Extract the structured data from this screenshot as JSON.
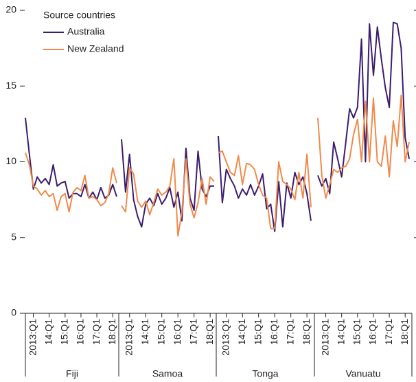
{
  "chart_data": {
    "type": "line",
    "legend_title": "Source countries",
    "series": [
      {
        "name": "Australia",
        "color": "#3b1c6e"
      },
      {
        "name": "New Zealand",
        "color": "#f08a4b"
      }
    ],
    "ylim": [
      0,
      20
    ],
    "yticks": [
      0,
      5,
      10,
      15,
      20
    ],
    "panels": [
      {
        "label": "Fiji",
        "categories": [
          null,
          null,
          "2013:Q1",
          null,
          null,
          null,
          "14:Q1",
          null,
          null,
          null,
          "15:Q1",
          null,
          null,
          null,
          "16:Q1",
          null,
          null,
          null,
          "17:Q1",
          null,
          null,
          null,
          "18:Q1",
          null
        ],
        "values": [
          [
            12.9,
            10.5,
            8.2,
            9.0,
            8.6,
            8.9,
            8.5,
            9.8,
            8.4,
            8.6,
            8.7,
            7.6,
            7.9,
            7.9,
            7.7,
            8.5,
            7.6,
            8.0,
            7.5,
            8.3,
            7.6,
            7.8,
            8.5,
            7.7
          ],
          [
            10.6,
            9.8,
            8.4,
            8.2,
            7.8,
            8.1,
            7.7,
            7.9,
            6.8,
            7.7,
            7.9,
            6.7,
            8.0,
            8.3,
            8.1,
            9.1,
            7.6,
            7.7,
            7.5,
            7.1,
            7.3,
            7.9,
            9.6,
            8.6
          ]
        ]
      },
      {
        "label": "Samoa",
        "categories": [
          null,
          null,
          "2013:Q1",
          null,
          null,
          null,
          "14:Q1",
          null,
          null,
          null,
          "15:Q1",
          null,
          null,
          null,
          "16:Q1",
          null,
          null,
          null,
          "17:Q1",
          null,
          null,
          null,
          "18:Q1",
          null
        ],
        "values": [
          [
            11.5,
            8.0,
            10.5,
            7.5,
            6.4,
            5.7,
            7.2,
            7.6,
            7.1,
            7.9,
            7.2,
            7.6,
            8.3,
            7.0,
            8.0,
            6.1,
            10.9,
            7.6,
            6.8,
            10.7,
            8.2,
            7.7,
            8.4,
            8.4
          ],
          [
            7.1,
            6.7,
            9.6,
            9.2,
            7.4,
            7.0,
            7.4,
            6.5,
            7.3,
            8.2,
            7.8,
            8.0,
            8.4,
            10.2,
            5.1,
            6.7,
            10.2,
            7.2,
            6.3,
            7.3,
            8.9,
            7.2,
            9.0,
            8.7
          ]
        ]
      },
      {
        "label": "Tonga",
        "categories": [
          null,
          null,
          "2013:Q1",
          null,
          null,
          null,
          "14:Q1",
          null,
          null,
          null,
          "15:Q1",
          null,
          null,
          null,
          "16:Q1",
          null,
          null,
          null,
          "17:Q1",
          null,
          null,
          null,
          "18:Q1",
          null
        ],
        "values": [
          [
            11.7,
            7.3,
            9.5,
            8.9,
            8.4,
            7.6,
            8.2,
            7.8,
            8.5,
            7.8,
            8.4,
            9.2,
            6.9,
            7.2,
            5.4,
            8.7,
            5.7,
            8.6,
            7.6,
            9.3,
            8.5,
            9.0,
            7.9,
            6.1
          ],
          [
            10.6,
            10.7,
            10.0,
            9.3,
            9.1,
            10.4,
            8.5,
            9.9,
            9.8,
            9.5,
            8.5,
            7.8,
            7.6,
            5.6,
            5.6,
            10.0,
            8.7,
            8.5,
            8.2,
            7.5,
            9.3,
            7.6,
            10.5,
            7.0
          ]
        ]
      },
      {
        "label": "Vanuatu",
        "categories": [
          null,
          null,
          "2013:Q1",
          null,
          null,
          null,
          "14:Q1",
          null,
          null,
          null,
          "15:Q1",
          null,
          null,
          null,
          "16:Q1",
          null,
          null,
          null,
          "17:Q1",
          null,
          null,
          null,
          "18:Q1",
          null
        ],
        "values": [
          [
            9.1,
            8.4,
            8.9,
            7.9,
            11.3,
            10.2,
            9.0,
            11.2,
            13.5,
            12.9,
            13.6,
            18.1,
            10.0,
            19.1,
            15.7,
            18.9,
            16.8,
            14.9,
            13.6,
            19.2,
            19.1,
            17.5,
            11.6,
            10.2
          ],
          [
            12.9,
            9.1,
            7.6,
            8.5,
            9.5,
            9.3,
            9.6,
            9.7,
            10.2,
            11.8,
            12.8,
            10.0,
            14.0,
            10.0,
            14.2,
            10.0,
            9.7,
            11.7,
            9.0,
            12.7,
            11.0,
            14.4,
            10.0,
            11.3
          ]
        ]
      }
    ]
  }
}
